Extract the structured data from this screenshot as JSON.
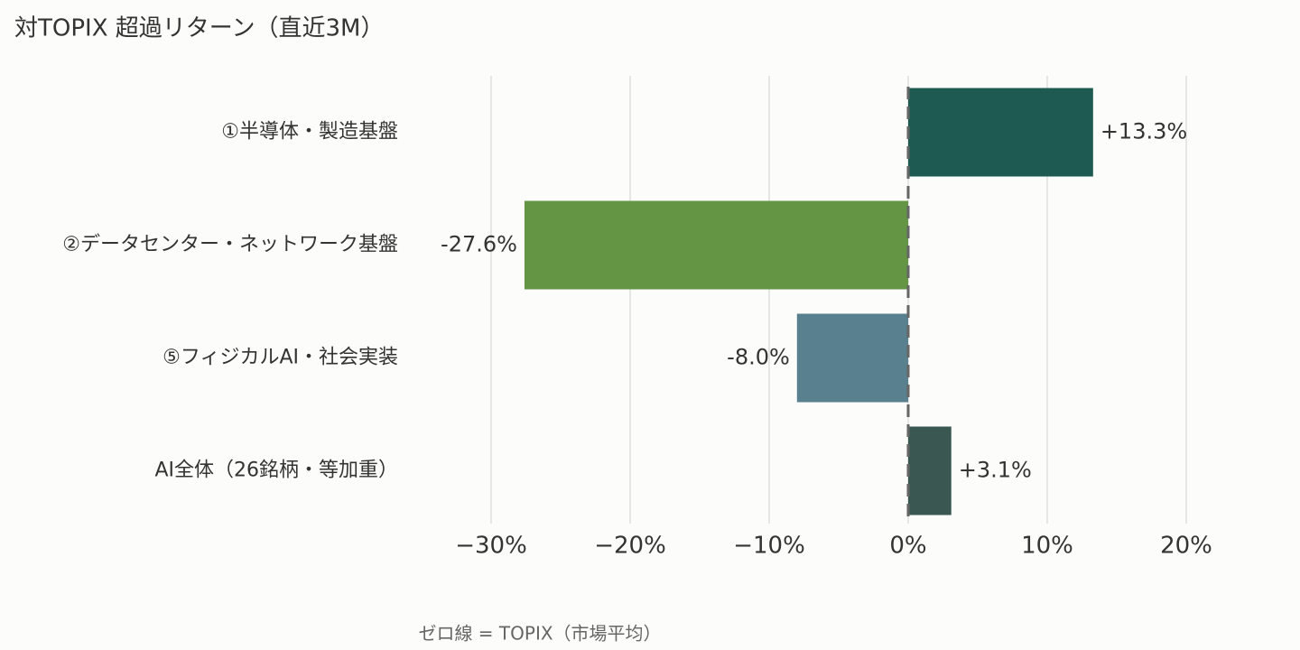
{
  "chart_data": {
    "type": "barh",
    "title": "対TOPIX 超過リターン（直近3M）",
    "categories": [
      "①半導体・製造基盤",
      "②データセンター・ネットワーク基盤",
      "⑤フィジカルAI・社会実装",
      "AI全体（26銘柄・等加重）"
    ],
    "values": [
      13.3,
      -27.6,
      -8.0,
      3.1
    ],
    "value_labels": [
      "+13.3%",
      "-27.6%",
      "-8.0%",
      "+3.1%"
    ],
    "colors": [
      "#1e5a52",
      "#639544",
      "#58808f",
      "#3a5751"
    ],
    "xlim": [
      -35,
      24
    ],
    "xticks": [
      {
        "value": -30,
        "label": "−30%"
      },
      {
        "value": -20,
        "label": "−20%"
      },
      {
        "value": -10,
        "label": "−10%"
      },
      {
        "value": 0,
        "label": "0%"
      },
      {
        "value": 10,
        "label": "10%"
      },
      {
        "value": 20,
        "label": "20%"
      }
    ],
    "grid": true,
    "annotation": "ゼロ線 = TOPIX（市場平均）"
  }
}
